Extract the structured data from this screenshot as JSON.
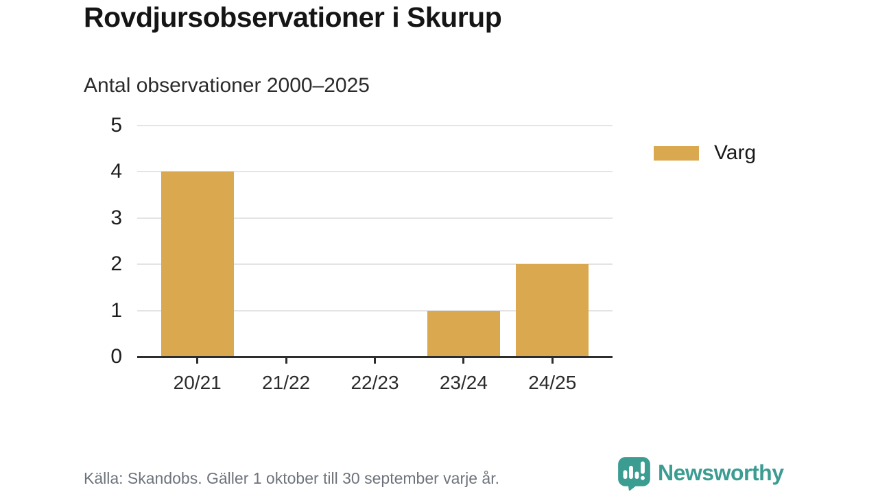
{
  "header": {
    "title": "Rovdjursobservationer i Skurup",
    "subtitle": "Antal observationer 2000–2025"
  },
  "chart_data": {
    "type": "bar",
    "categories": [
      "20/21",
      "21/22",
      "22/23",
      "23/24",
      "24/25"
    ],
    "series": [
      {
        "name": "Varg",
        "color": "#d9a84f",
        "values": [
          4,
          0,
          0,
          1,
          2
        ]
      }
    ],
    "title": "Rovdjursobservationer i Skurup",
    "subtitle": "Antal observationer 2000–2025",
    "xlabel": "",
    "ylabel": "",
    "ylim": [
      0,
      5
    ],
    "yticks": [
      0,
      1,
      2,
      3,
      4,
      5
    ],
    "grid": true,
    "legend_position": "right"
  },
  "legend": {
    "items": [
      {
        "label": "Varg",
        "color": "#d9a84f"
      }
    ]
  },
  "footer": {
    "source": "Källa: Skandobs. Gäller 1 oktober till 30 september varje år.",
    "brand": "Newsworthy",
    "brand_color": "#3b9c92",
    "brand_icon": "speech-bubble-bar-chart-icon"
  }
}
